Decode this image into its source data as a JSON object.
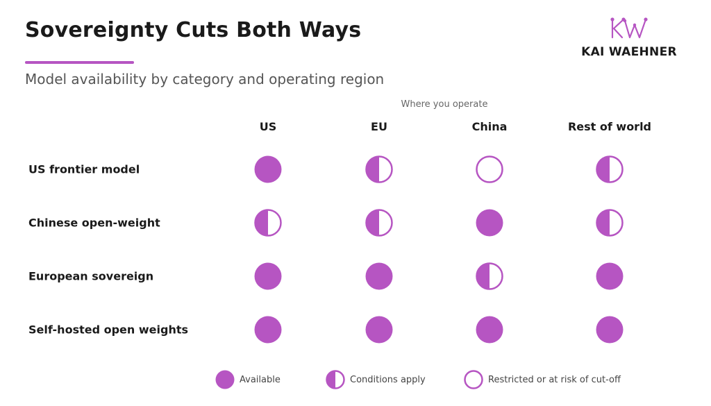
{
  "header": {
    "title": "Sovereignty Cuts Both Ways",
    "subtitle": "Model availability by category and operating region",
    "brand": "KAI WAEHNER",
    "brand_monogram": "KW"
  },
  "colors": {
    "accent": "#b655c2",
    "text": "#1a1a1a",
    "muted": "#555555"
  },
  "matrix": {
    "column_caption": "Where you operate",
    "columns": [
      "US",
      "EU",
      "China",
      "Rest of world"
    ],
    "rows": [
      {
        "label": "US frontier model",
        "status": [
          "available",
          "conditions",
          "restricted",
          "conditions"
        ]
      },
      {
        "label": "Chinese open-weight",
        "status": [
          "conditions",
          "conditions",
          "available",
          "conditions"
        ]
      },
      {
        "label": "European sovereign",
        "status": [
          "available",
          "available",
          "conditions",
          "available"
        ]
      },
      {
        "label": "Self-hosted open weights",
        "status": [
          "available",
          "available",
          "available",
          "available"
        ]
      }
    ]
  },
  "legend": [
    {
      "status": "available",
      "label": "Available"
    },
    {
      "status": "conditions",
      "label": "Conditions apply"
    },
    {
      "status": "restricted",
      "label": "Restricted or at risk of cut-off"
    }
  ]
}
